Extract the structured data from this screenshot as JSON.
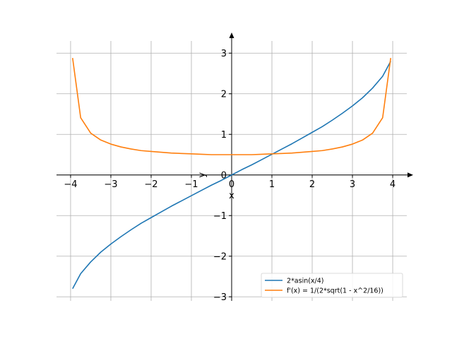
{
  "chart_data": {
    "type": "line",
    "xlabel": "x",
    "ylabel": "y",
    "xlim": [
      -4.35,
      4.35
    ],
    "ylim": [
      -3.1,
      3.3
    ],
    "x_ticks": [
      -4,
      -3,
      -2,
      -1,
      0,
      1,
      2,
      3,
      4
    ],
    "x_tick_labels": [
      "−4",
      "−3",
      "−2",
      "−1",
      "0",
      "1",
      "2",
      "3",
      "4"
    ],
    "y_ticks": [
      -3,
      -2,
      -1,
      0,
      1,
      2,
      3
    ],
    "y_tick_labels": [
      "−3",
      "−2",
      "−1",
      "0",
      "1",
      "2",
      "3"
    ],
    "grid": true,
    "axes_style": "centered-with-arrows",
    "legend_position": "lower-right",
    "series": [
      {
        "name": "2*asin(x/4)",
        "color": "#1f77b4",
        "x": [
          -3.95,
          -3.75,
          -3.5,
          -3.25,
          -3.0,
          -2.75,
          -2.5,
          -2.25,
          -2.0,
          -1.75,
          -1.5,
          -1.25,
          -1.0,
          -0.75,
          -0.5,
          -0.25,
          0.0,
          0.25,
          0.5,
          0.75,
          1.0,
          1.25,
          1.5,
          1.75,
          2.0,
          2.25,
          2.5,
          2.75,
          3.0,
          3.25,
          3.5,
          3.75,
          3.95
        ],
        "y": [
          -2.8,
          -2.43,
          -2.14,
          -1.9,
          -1.7,
          -1.52,
          -1.35,
          -1.19,
          -1.05,
          -0.91,
          -0.77,
          -0.64,
          -0.51,
          -0.38,
          -0.25,
          -0.13,
          0.0,
          0.13,
          0.25,
          0.38,
          0.51,
          0.64,
          0.77,
          0.91,
          1.05,
          1.19,
          1.35,
          1.52,
          1.7,
          1.9,
          2.14,
          2.43,
          2.8
        ]
      },
      {
        "name": "f'(x) = 1/(2*sqrt(1 - x^2/16))",
        "color": "#ff7f0e",
        "x": [
          -3.95,
          -3.75,
          -3.5,
          -3.25,
          -3.0,
          -2.75,
          -2.5,
          -2.25,
          -2.0,
          -1.75,
          -1.5,
          -1.25,
          -1.0,
          -0.75,
          -0.5,
          -0.25,
          0.0,
          0.25,
          0.5,
          0.75,
          1.0,
          1.25,
          1.5,
          1.75,
          2.0,
          2.25,
          2.5,
          2.75,
          3.0,
          3.25,
          3.5,
          3.75,
          3.95
        ],
        "y": [
          2.88,
          1.41,
          1.03,
          0.86,
          0.76,
          0.69,
          0.64,
          0.6,
          0.58,
          0.56,
          0.54,
          0.53,
          0.52,
          0.51,
          0.5,
          0.5,
          0.5,
          0.5,
          0.5,
          0.51,
          0.52,
          0.53,
          0.54,
          0.56,
          0.58,
          0.6,
          0.64,
          0.69,
          0.76,
          0.86,
          1.03,
          1.41,
          2.88
        ]
      }
    ]
  }
}
